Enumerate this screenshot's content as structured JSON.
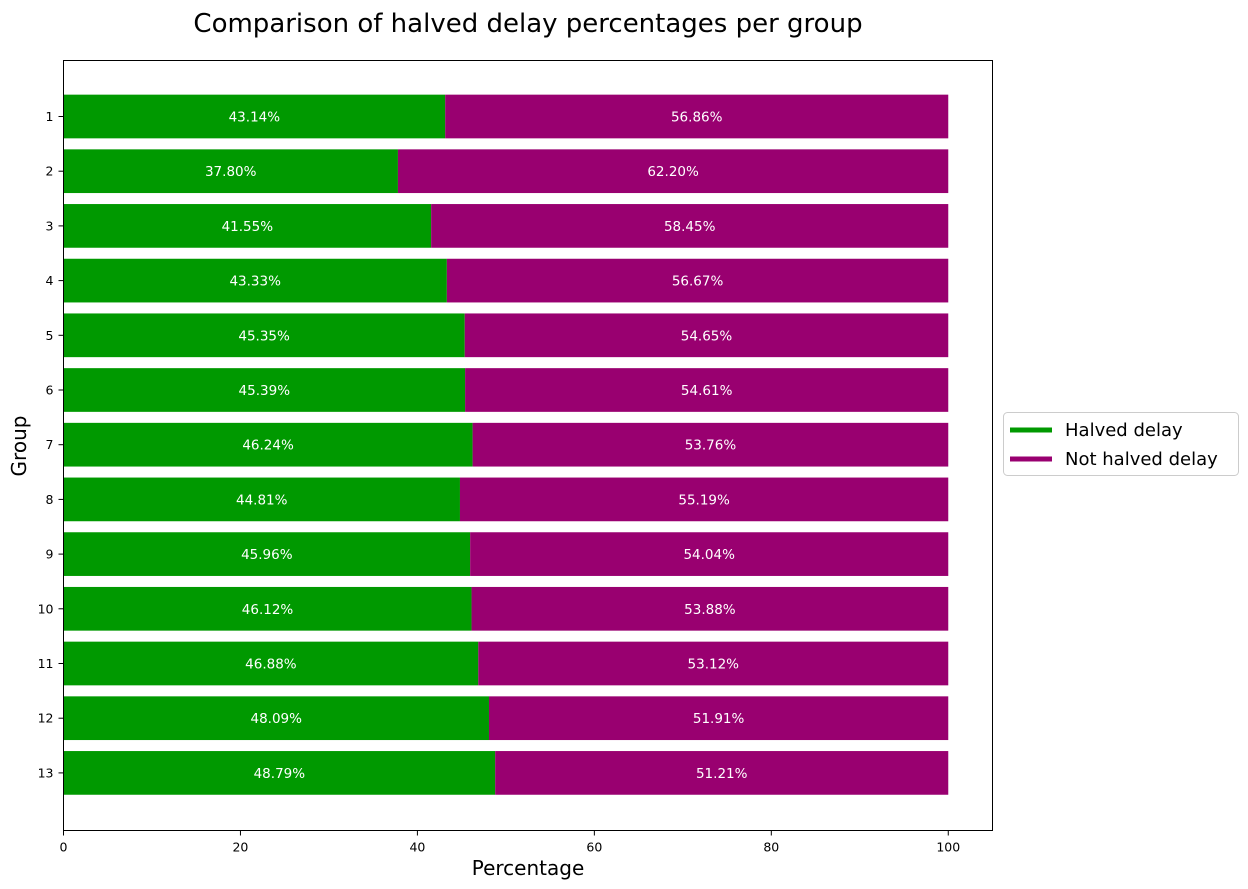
{
  "chart_data": {
    "type": "bar",
    "orientation": "horizontal",
    "stacked": true,
    "title": "Comparison of halved delay percentages per group",
    "xlabel": "Percentage",
    "ylabel": "Group",
    "xlim": [
      0,
      105
    ],
    "x_ticks": [
      0,
      20,
      40,
      60,
      80,
      100
    ],
    "categories": [
      "1",
      "2",
      "3",
      "4",
      "5",
      "6",
      "7",
      "8",
      "9",
      "10",
      "11",
      "12",
      "13"
    ],
    "series": [
      {
        "name": "Halved delay",
        "color": "#009900",
        "values": [
          43.14,
          37.8,
          41.55,
          43.33,
          45.35,
          45.39,
          46.24,
          44.81,
          45.96,
          46.12,
          46.88,
          48.09,
          48.79
        ],
        "labels": [
          "43.14%",
          "37.80%",
          "41.55%",
          "43.33%",
          "45.35%",
          "45.39%",
          "46.24%",
          "44.81%",
          "45.96%",
          "46.12%",
          "46.88%",
          "48.09%",
          "48.79%"
        ]
      },
      {
        "name": "Not halved delay",
        "color": "#990070",
        "values": [
          56.86,
          62.2,
          58.45,
          56.67,
          54.65,
          54.61,
          53.76,
          55.19,
          54.04,
          53.88,
          53.12,
          51.91,
          51.21
        ],
        "labels": [
          "56.86%",
          "62.20%",
          "58.45%",
          "56.67%",
          "54.65%",
          "54.61%",
          "53.76%",
          "55.19%",
          "54.04%",
          "53.88%",
          "53.12%",
          "51.91%",
          "51.21%"
        ]
      }
    ],
    "grid": false,
    "legend_position": "center-right outside"
  }
}
